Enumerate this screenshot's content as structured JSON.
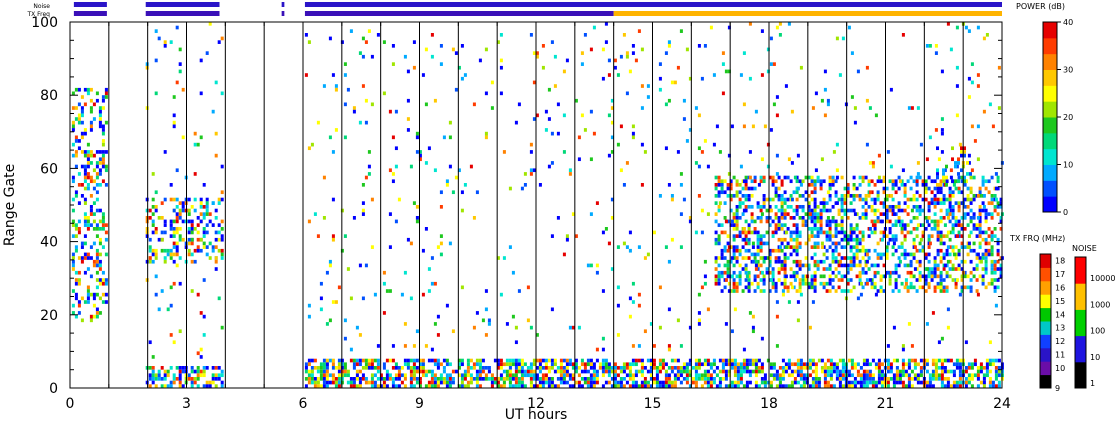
{
  "chart_data": {
    "type": "heatmap",
    "xlabel": "UT hours",
    "ylabel": "Range Gate",
    "xlim": [
      0,
      24
    ],
    "ylim": [
      0,
      100
    ],
    "x_ticks": [
      "0",
      "3",
      "6",
      "9",
      "12",
      "15",
      "18",
      "21",
      "24"
    ],
    "y_ticks": [
      "0",
      "20",
      "40",
      "60",
      "80",
      "100"
    ],
    "scan_boundaries_ut": [
      1,
      2,
      3,
      4,
      5,
      6,
      7,
      8,
      9,
      10,
      11,
      12,
      13,
      14,
      15,
      16,
      17,
      18,
      19,
      20,
      21,
      22,
      23
    ],
    "status_bars": {
      "noise_label": "Noise",
      "txfrq_label": "TX Freq",
      "noise_segments": [
        [
          0.1,
          0.95
        ],
        [
          1.95,
          3.85
        ],
        [
          5.45,
          5.52
        ],
        [
          6.05,
          24
        ]
      ],
      "txfrq_segments": [
        {
          "start": 0.1,
          "end": 0.95,
          "color": "#3a10b8"
        },
        {
          "start": 1.95,
          "end": 3.85,
          "color": "#3a10b8"
        },
        {
          "start": 5.45,
          "end": 5.52,
          "color": "#3a10b8"
        },
        {
          "start": 6.05,
          "end": 14.0,
          "color": "#3a10b8"
        },
        {
          "start": 14.0,
          "end": 24,
          "color": "#ffb400"
        }
      ]
    },
    "power_scale": {
      "title": "POWER (dB)",
      "min": 0,
      "max": 40,
      "ticks": [
        "0",
        "10",
        "20",
        "30",
        "40"
      ],
      "colors": [
        "#0000ff",
        "#0050ff",
        "#00aaff",
        "#00e5d0",
        "#00d878",
        "#1ec81e",
        "#a0e600",
        "#ffff00",
        "#ffc800",
        "#ff8200",
        "#ff3c00",
        "#e60000"
      ]
    },
    "txfrq_scale": {
      "title": "TX FRQ (MHz)",
      "labels": [
        "9",
        "10",
        "11",
        "12",
        "13",
        "14",
        "15",
        "16",
        "17",
        "18"
      ],
      "colors": [
        "#000000",
        "#6a0da8",
        "#2a14c8",
        "#1040ff",
        "#00c8c8",
        "#00c800",
        "#ffff00",
        "#ffa000",
        "#ff5000",
        "#e00000"
      ]
    },
    "noise_scale": {
      "title": "NOISE",
      "labels": [
        "1",
        "10",
        "100",
        "1000",
        "10000"
      ],
      "colors": [
        "#000000",
        "#1e14e0",
        "#00d000",
        "#ffc000",
        "#ff0000"
      ]
    },
    "scatter_regions": [
      {
        "x0": 0.05,
        "x1": 0.95,
        "y0": 18,
        "y1": 82,
        "density": 0.35
      },
      {
        "x0": 1.95,
        "x1": 3.9,
        "y0": 0,
        "y1": 6,
        "density": 0.55
      },
      {
        "x0": 1.95,
        "x1": 3.9,
        "y0": 34,
        "y1": 52,
        "density": 0.35
      },
      {
        "x0": 6.05,
        "x1": 24,
        "y0": 0,
        "y1": 8,
        "density": 0.65
      },
      {
        "x0": 16.6,
        "x1": 24,
        "y0": 26,
        "y1": 58,
        "density": 0.45
      },
      {
        "x0": 6.05,
        "x1": 24,
        "y0": 10,
        "y1": 100,
        "density": 0.03
      },
      {
        "x0": 22.3,
        "x1": 23.2,
        "y0": 56,
        "y1": 66,
        "density": 0.3
      },
      {
        "x0": 1.95,
        "x1": 3.9,
        "y0": 8,
        "y1": 100,
        "density": 0.03
      }
    ]
  }
}
